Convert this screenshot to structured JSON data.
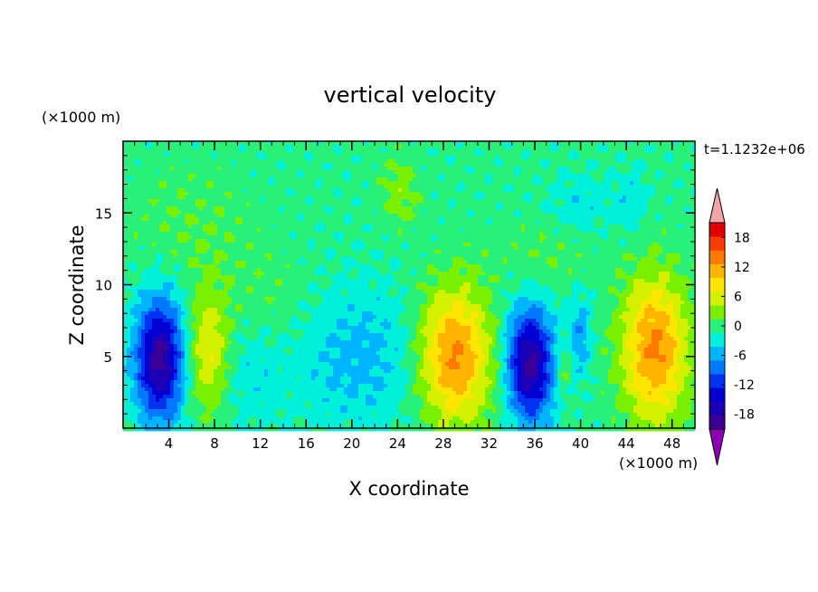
{
  "chart_data": {
    "type": "heatmap",
    "title": "vertical velocity",
    "xlabel": "X coordinate",
    "ylabel": "Z coordinate",
    "x_unit": "(×1000 m)",
    "y_unit": "(×1000 m)",
    "time_label": "t=1.1232e+06",
    "xlim": [
      0,
      50
    ],
    "ylim": [
      0,
      20
    ],
    "x_ticks": [
      4,
      8,
      12,
      16,
      20,
      24,
      28,
      32,
      36,
      40,
      44,
      48
    ],
    "y_ticks": [
      5,
      10,
      15
    ],
    "colorbar": {
      "levels": [
        -21,
        -18,
        -15,
        -12,
        -9,
        -6,
        -3,
        0,
        3,
        6,
        9,
        12,
        15,
        18,
        21
      ],
      "tick_labels": [
        "18",
        "12",
        "6",
        "0",
        "-6",
        "-12",
        "-18"
      ],
      "tick_values": [
        18,
        12,
        6,
        0,
        -6,
        -12,
        -18
      ],
      "colors": [
        "#3c0096",
        "#1e00b4",
        "#0000d2",
        "#0032f0",
        "#0078ff",
        "#00b4ff",
        "#00f0dc",
        "#28f078",
        "#78f000",
        "#d2f000",
        "#ffe600",
        "#ffb400",
        "#ff7800",
        "#ff3c00",
        "#e10000"
      ],
      "under_color": "#8c00b4",
      "over_color": "#f5a5a5"
    },
    "features": [
      {
        "x": 3.2,
        "z": 4.8,
        "amp": -20,
        "sx": 1.5,
        "sz": 3.0
      },
      {
        "x": 7.5,
        "z": 5.2,
        "amp": 9,
        "sx": 1.4,
        "sz": 3.0
      },
      {
        "x": 10.5,
        "z": 4.0,
        "amp": -3,
        "sx": 2.5,
        "sz": 3.0
      },
      {
        "x": 20.5,
        "z": 5.0,
        "amp": -5,
        "sx": 4.0,
        "sz": 3.5
      },
      {
        "x": 29.0,
        "z": 5.0,
        "amp": 15,
        "sx": 2.2,
        "sz": 3.3
      },
      {
        "x": 35.6,
        "z": 4.5,
        "amp": -20,
        "sx": 1.4,
        "sz": 2.8
      },
      {
        "x": 38.5,
        "z": 4.2,
        "amp": 4,
        "sx": 0.5,
        "sz": 1.2
      },
      {
        "x": 40.0,
        "z": 6.5,
        "amp": -6,
        "sx": 0.7,
        "sz": 2.0
      },
      {
        "x": 46.5,
        "z": 5.5,
        "amp": 15,
        "sx": 2.0,
        "sz": 3.5
      },
      {
        "x": 24.2,
        "z": 16.5,
        "amp": 4,
        "sx": 1.2,
        "sz": 1.8
      },
      {
        "x": 40.0,
        "z": 15.5,
        "amp": -3,
        "sx": 2.0,
        "sz": 1.5
      },
      {
        "x": 44.5,
        "z": 16.0,
        "amp": -3,
        "sx": 1.0,
        "sz": 1.5
      },
      {
        "x": 6.0,
        "z": 14.0,
        "amp": 2,
        "sx": 4.0,
        "sz": 3.0
      },
      {
        "x": 13.0,
        "z": 8.5,
        "amp": 2,
        "sx": 3.0,
        "sz": 2.5
      },
      {
        "x": 37.0,
        "z": 12.0,
        "amp": 2,
        "sx": 3.0,
        "sz": 2.0
      }
    ]
  }
}
